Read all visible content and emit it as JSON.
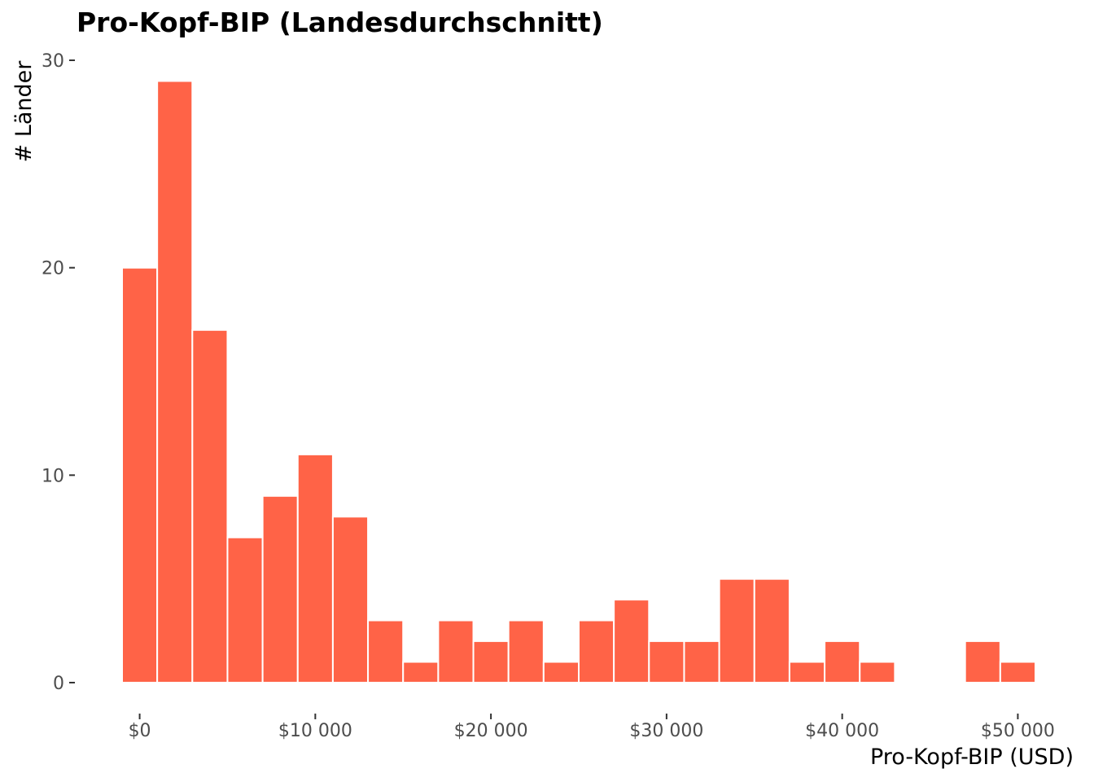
{
  "chart_data": {
    "type": "bar",
    "title": "Pro-Kopf-BIP (Landesdurchschnitt)",
    "xlabel": "Pro-Kopf-BIP (USD)",
    "ylabel": "# Länder",
    "bar_color": "#FF6347",
    "bin_width": 2000,
    "bins": [
      {
        "x_start": -1000,
        "x_end": 1000,
        "count": 20
      },
      {
        "x_start": 1000,
        "x_end": 3000,
        "count": 29
      },
      {
        "x_start": 3000,
        "x_end": 5000,
        "count": 17
      },
      {
        "x_start": 5000,
        "x_end": 7000,
        "count": 7
      },
      {
        "x_start": 7000,
        "x_end": 9000,
        "count": 9
      },
      {
        "x_start": 9000,
        "x_end": 11000,
        "count": 11
      },
      {
        "x_start": 11000,
        "x_end": 13000,
        "count": 8
      },
      {
        "x_start": 13000,
        "x_end": 15000,
        "count": 3
      },
      {
        "x_start": 15000,
        "x_end": 17000,
        "count": 1
      },
      {
        "x_start": 17000,
        "x_end": 19000,
        "count": 3
      },
      {
        "x_start": 19000,
        "x_end": 21000,
        "count": 2
      },
      {
        "x_start": 21000,
        "x_end": 23000,
        "count": 3
      },
      {
        "x_start": 23000,
        "x_end": 25000,
        "count": 1
      },
      {
        "x_start": 25000,
        "x_end": 27000,
        "count": 3
      },
      {
        "x_start": 27000,
        "x_end": 29000,
        "count": 4
      },
      {
        "x_start": 29000,
        "x_end": 31000,
        "count": 2
      },
      {
        "x_start": 31000,
        "x_end": 33000,
        "count": 2
      },
      {
        "x_start": 33000,
        "x_end": 35000,
        "count": 5
      },
      {
        "x_start": 35000,
        "x_end": 37000,
        "count": 5
      },
      {
        "x_start": 37000,
        "x_end": 39000,
        "count": 1
      },
      {
        "x_start": 39000,
        "x_end": 41000,
        "count": 2
      },
      {
        "x_start": 41000,
        "x_end": 43000,
        "count": 1
      },
      {
        "x_start": 43000,
        "x_end": 45000,
        "count": 0
      },
      {
        "x_start": 45000,
        "x_end": 47000,
        "count": 0
      },
      {
        "x_start": 47000,
        "x_end": 49000,
        "count": 2
      },
      {
        "x_start": 49000,
        "x_end": 51000,
        "count": 1
      }
    ],
    "x_ticks": [
      {
        "value": 0,
        "label": "$0"
      },
      {
        "value": 10000,
        "label": "$10 000"
      },
      {
        "value": 20000,
        "label": "$20 000"
      },
      {
        "value": 30000,
        "label": "$30 000"
      },
      {
        "value": 40000,
        "label": "$40 000"
      },
      {
        "value": 50000,
        "label": "$50 000"
      }
    ],
    "y_ticks": [
      {
        "value": 0,
        "label": "0"
      },
      {
        "value": 10,
        "label": "10"
      },
      {
        "value": 20,
        "label": "20"
      },
      {
        "value": 30,
        "label": "30"
      }
    ],
    "xlim": [
      -1000,
      51000
    ],
    "ylim": [
      0,
      30
    ],
    "grid": false,
    "legend": "none"
  }
}
